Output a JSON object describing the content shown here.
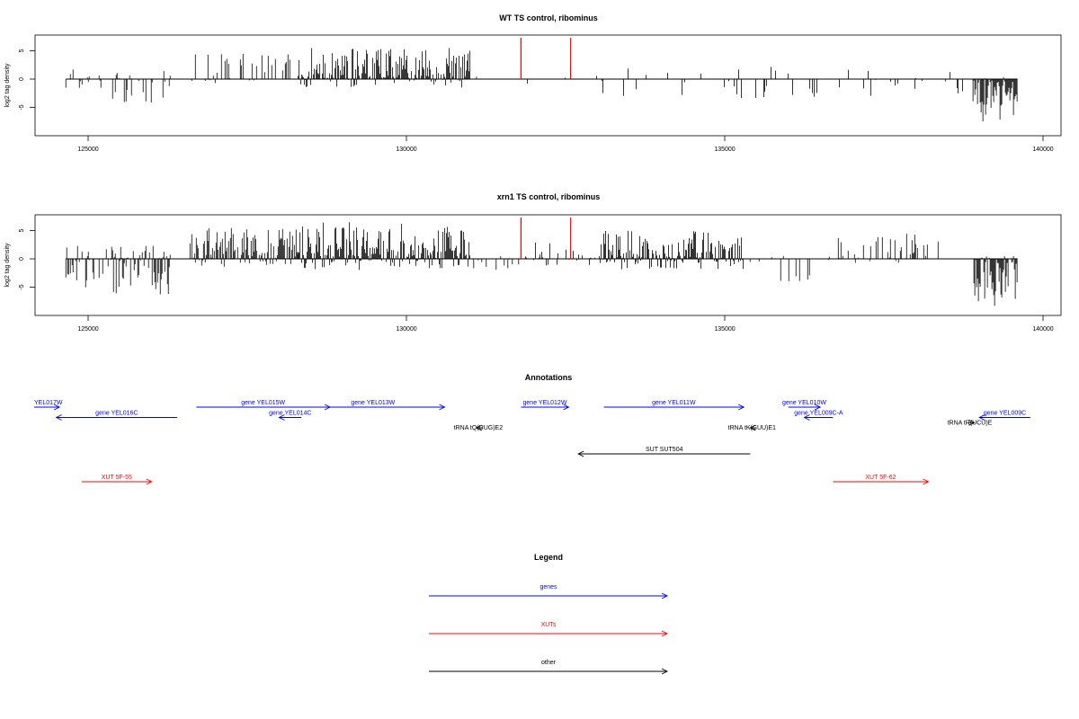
{
  "chart_data": [
    {
      "type": "bar",
      "title": "WT TS control, ribominus",
      "ylabel": "log2 tag density",
      "xlim": [
        124000,
        141000
      ],
      "ylim": [
        -9,
        7
      ],
      "xticks": [
        125000,
        130000,
        135000,
        140000
      ],
      "xtick_labels": [
        "125000",
        "130000",
        "135000",
        "140000"
      ],
      "yticks": [
        5,
        0,
        -5
      ],
      "ytick_labels": [
        "5",
        "0",
        "-5"
      ],
      "markers": [
        131800,
        132580
      ],
      "marker_color": "#ff0000",
      "series": [
        {
          "segments": [
            {
              "from": 124650,
              "to": 126300,
              "min": -4.5,
              "max": 2,
              "density": 0.5
            },
            {
              "from": 126600,
              "to": 128300,
              "min": -1,
              "max": 4.5,
              "density": 0.6
            },
            {
              "from": 128300,
              "to": 131000,
              "min": -1.5,
              "max": 5.5,
              "density": 1.8
            },
            {
              "from": 131100,
              "to": 131200,
              "min": -1.5,
              "max": 0.5,
              "density": 0.3
            },
            {
              "from": 131800,
              "to": 133000,
              "min": -1,
              "max": 2.8,
              "density": 0.2
            },
            {
              "from": 133000,
              "to": 138900,
              "min": -3.5,
              "max": 2.2,
              "density": 0.22
            },
            {
              "from": 138900,
              "to": 139600,
              "min": -7.5,
              "max": 0.5,
              "density": 3.0
            }
          ]
        }
      ]
    },
    {
      "type": "bar",
      "title": "xrn1 TS control, ribominus",
      "ylabel": "log2 tag density",
      "xlim": [
        124000,
        141000
      ],
      "ylim": [
        -9,
        7
      ],
      "xticks": [
        125000,
        130000,
        135000,
        140000
      ],
      "xtick_labels": [
        "125000",
        "130000",
        "135000",
        "140000"
      ],
      "yticks": [
        5,
        0,
        -5
      ],
      "ytick_labels": [
        "5",
        "0",
        "-5"
      ],
      "markers": [
        131800,
        132580
      ],
      "marker_color": "#ff0000",
      "series": [
        {
          "segments": [
            {
              "from": 124650,
              "to": 126300,
              "min": -6.5,
              "max": 2.5,
              "density": 1.4
            },
            {
              "from": 126600,
              "to": 128300,
              "min": -1.5,
              "max": 5.5,
              "density": 1.6
            },
            {
              "from": 128300,
              "to": 131000,
              "min": -2,
              "max": 6.5,
              "density": 2.5
            },
            {
              "from": 131000,
              "to": 131800,
              "min": -2,
              "max": 0.5,
              "density": 0.4
            },
            {
              "from": 131800,
              "to": 133000,
              "min": -1.5,
              "max": 3,
              "density": 0.6
            },
            {
              "from": 133000,
              "to": 135300,
              "min": -2,
              "max": 5,
              "density": 1.8
            },
            {
              "from": 135300,
              "to": 136400,
              "min": -5.5,
              "max": 1,
              "density": 0.3
            },
            {
              "from": 136600,
              "to": 138500,
              "min": -1,
              "max": 4.5,
              "density": 0.7
            },
            {
              "from": 138900,
              "to": 139600,
              "min": -8.5,
              "max": 0.5,
              "density": 3.0
            }
          ]
        }
      ]
    }
  ],
  "annotations": {
    "title": "Annotations",
    "items": [
      {
        "label": "YEL017W",
        "start": 123900,
        "end": 124550,
        "row": 0,
        "strand": "+",
        "type": "gene"
      },
      {
        "label": "gene YEL016C",
        "start": 124500,
        "end": 126400,
        "row": 1,
        "strand": "-",
        "type": "gene"
      },
      {
        "label": "gene YEL015W",
        "start": 126700,
        "end": 128800,
        "row": 0,
        "strand": "+",
        "type": "gene"
      },
      {
        "label": "gene YEL014C",
        "start": 128000,
        "end": 128350,
        "row": 1,
        "strand": "-",
        "type": "gene"
      },
      {
        "label": "gene YEL013W",
        "start": 128350,
        "end": 130600,
        "row": 0,
        "strand": "+",
        "type": "gene"
      },
      {
        "label": "gene YEL012W",
        "start": 131800,
        "end": 132550,
        "row": 0,
        "strand": "+",
        "type": "gene"
      },
      {
        "label": "gene YEL011W",
        "start": 133100,
        "end": 135300,
        "row": 0,
        "strand": "+",
        "type": "gene"
      },
      {
        "label": "gene YEL010W",
        "start": 136000,
        "end": 136500,
        "row": 0,
        "strand": "+",
        "type": "gene"
      },
      {
        "label": "gene YEL009C-A",
        "start": 136250,
        "end": 136700,
        "row": 1,
        "strand": "-",
        "type": "gene"
      },
      {
        "label": "gene YEL009C",
        "start": 139000,
        "end": 139800,
        "row": 1,
        "strand": "-",
        "type": "gene"
      },
      {
        "label": "tRNA tQ(UUG)E2",
        "start": 131100,
        "end": 131200,
        "row": 2,
        "strand": "-",
        "type": "other"
      },
      {
        "label": "tRNA tK(CUU)E1",
        "start": 135400,
        "end": 135500,
        "row": 2,
        "strand": "-",
        "type": "other"
      },
      {
        "label": "tRNA tR(UCU)E",
        "start": 138820,
        "end": 138920,
        "row": 1.5,
        "strand": "+",
        "type": "other"
      },
      {
        "label": "SUT SUT504",
        "start": 132700,
        "end": 135400,
        "row": 3,
        "strand": "-",
        "type": "other"
      },
      {
        "label": "XUT 5F-55",
        "start": 124900,
        "end": 126000,
        "row": 4,
        "strand": "+",
        "type": "xut"
      },
      {
        "label": "XUT 5F-62",
        "start": 136700,
        "end": 138200,
        "row": 4,
        "strand": "+",
        "type": "xut"
      }
    ]
  },
  "legend": {
    "title": "Legend",
    "items": [
      {
        "label": "genes",
        "color": "#0000ff"
      },
      {
        "label": "XUTs",
        "color": "#ff0000"
      },
      {
        "label": "other",
        "color": "#000000"
      }
    ]
  },
  "colors": {
    "gene": "#0000ff",
    "xut": "#ff0000",
    "other": "#000000",
    "bars": "#000000",
    "axis": "#000000"
  }
}
